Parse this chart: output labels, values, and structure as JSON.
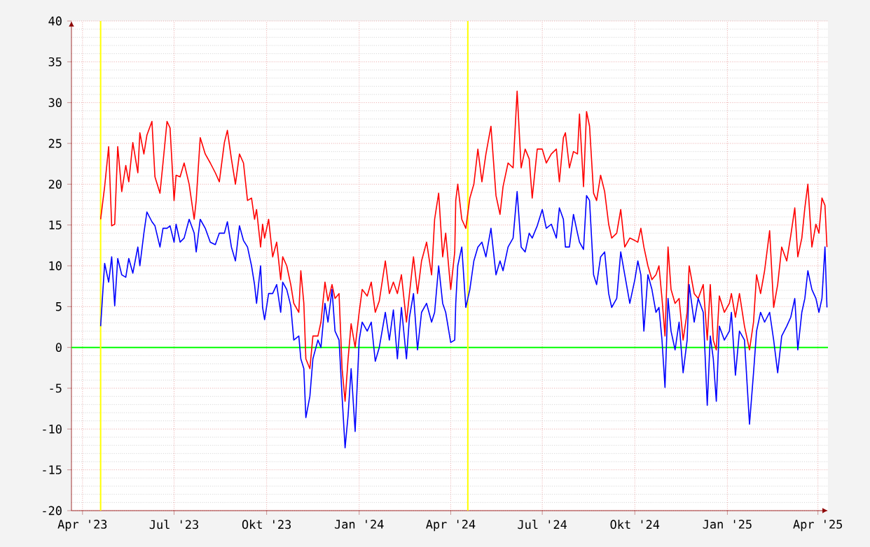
{
  "chart_data": {
    "type": "line",
    "x": [
      "2023-04-19",
      "2023-04-23",
      "2023-04-27",
      "2023-04-30",
      "2023-05-03",
      "2023-05-06",
      "2023-05-10",
      "2023-05-14",
      "2023-05-17",
      "2023-05-21",
      "2023-05-26",
      "2023-05-28",
      "2023-06-01",
      "2023-06-04",
      "2023-06-09",
      "2023-06-12",
      "2023-06-17",
      "2023-06-20",
      "2023-06-24",
      "2023-06-27",
      "2023-07-01",
      "2023-07-03",
      "2023-07-07",
      "2023-07-11",
      "2023-07-16",
      "2023-07-21",
      "2023-07-23",
      "2023-07-27",
      "2023-08-01",
      "2023-08-06",
      "2023-08-11",
      "2023-08-15",
      "2023-08-20",
      "2023-08-23",
      "2023-08-27",
      "2023-08-31",
      "2023-09-04",
      "2023-09-08",
      "2023-09-12",
      "2023-09-16",
      "2023-09-19",
      "2023-09-21",
      "2023-09-25",
      "2023-09-27",
      "2023-09-29",
      "2023-10-03",
      "2023-10-07",
      "2023-10-11",
      "2023-10-15",
      "2023-10-17",
      "2023-10-21",
      "2023-10-25",
      "2023-10-28",
      "2023-11-02",
      "2023-11-04",
      "2023-11-07",
      "2023-11-09",
      "2023-11-13",
      "2023-11-16",
      "2023-11-21",
      "2023-11-24",
      "2023-11-28",
      "2023-12-01",
      "2023-12-05",
      "2023-12-08",
      "2023-12-12",
      "2023-12-15",
      "2023-12-18",
      "2023-12-21",
      "2023-12-24",
      "2023-12-28",
      "2024-01-01",
      "2024-01-04",
      "2024-01-09",
      "2024-01-13",
      "2024-01-17",
      "2024-01-21",
      "2024-01-27",
      "2024-01-31",
      "2024-02-04",
      "2024-02-08",
      "2024-02-12",
      "2024-02-17",
      "2024-02-20",
      "2024-02-24",
      "2024-02-28",
      "2024-03-03",
      "2024-03-08",
      "2024-03-13",
      "2024-03-16",
      "2024-03-20",
      "2024-03-24",
      "2024-03-27",
      "2024-04-01",
      "2024-04-05",
      "2024-04-06",
      "2024-04-08",
      "2024-04-12",
      "2024-04-16",
      "2024-04-20",
      "2024-04-24",
      "2024-04-28",
      "2024-05-02",
      "2024-05-06",
      "2024-05-11",
      "2024-05-16",
      "2024-05-20",
      "2024-05-23",
      "2024-05-28",
      "2024-06-02",
      "2024-06-06",
      "2024-06-10",
      "2024-06-14",
      "2024-06-18",
      "2024-06-21",
      "2024-06-26",
      "2024-07-01",
      "2024-07-05",
      "2024-07-10",
      "2024-07-15",
      "2024-07-18",
      "2024-07-22",
      "2024-07-24",
      "2024-07-28",
      "2024-08-01",
      "2024-08-05",
      "2024-08-07",
      "2024-08-11",
      "2024-08-14",
      "2024-08-17",
      "2024-08-21",
      "2024-08-24",
      "2024-08-28",
      "2024-09-01",
      "2024-09-05",
      "2024-09-08",
      "2024-09-13",
      "2024-09-17",
      "2024-09-21",
      "2024-09-26",
      "2024-10-01",
      "2024-10-04",
      "2024-10-07",
      "2024-10-10",
      "2024-10-14",
      "2024-10-18",
      "2024-10-22",
      "2024-10-25",
      "2024-10-28",
      "2024-10-31",
      "2024-11-03",
      "2024-11-06",
      "2024-11-10",
      "2024-11-14",
      "2024-11-18",
      "2024-11-22",
      "2024-11-24",
      "2024-11-29",
      "2024-12-03",
      "2024-12-08",
      "2024-12-12",
      "2024-12-15",
      "2024-12-18",
      "2024-12-21",
      "2024-12-24",
      "2024-12-29",
      "2025-01-03",
      "2025-01-05",
      "2025-01-09",
      "2025-01-13",
      "2025-01-18",
      "2025-01-23",
      "2025-01-27",
      "2025-01-30",
      "2025-02-03",
      "2025-02-07",
      "2025-02-12",
      "2025-02-16",
      "2025-02-20",
      "2025-02-24",
      "2025-03-01",
      "2025-03-05",
      "2025-03-09",
      "2025-03-12",
      "2025-03-16",
      "2025-03-19",
      "2025-03-22",
      "2025-03-26",
      "2025-03-30",
      "2025-04-02",
      "2025-04-05",
      "2025-04-08",
      "2025-04-10"
    ],
    "series": [
      {
        "color": "#ff0000",
        "values": [
          15.7,
          19.7,
          24.6,
          14.9,
          15.1,
          24.6,
          19.1,
          22.3,
          20.3,
          25.1,
          21.4,
          26.3,
          23.7,
          26,
          27.7,
          20.9,
          18.9,
          22.6,
          27.7,
          26.9,
          18,
          21.1,
          20.9,
          22.6,
          20,
          15.7,
          18,
          25.7,
          23.7,
          22.6,
          21.4,
          20.3,
          25.1,
          26.6,
          23.1,
          20,
          23.7,
          22.6,
          18,
          18.3,
          15.7,
          16.9,
          12.3,
          15.1,
          13.4,
          15.7,
          11.1,
          12.9,
          8.3,
          11.1,
          10,
          7.7,
          5.4,
          4.3,
          9.4,
          5.4,
          -1.4,
          -2.6,
          1.4,
          1.4,
          3.1,
          8,
          5.7,
          7.7,
          6,
          6.6,
          -2.6,
          -6.6,
          -1.4,
          2.9,
          0,
          4.3,
          7.1,
          6.3,
          8,
          4.3,
          5.7,
          10.6,
          6.6,
          8,
          6.6,
          8.9,
          3.1,
          6.6,
          11.1,
          6.6,
          10.6,
          12.9,
          8.9,
          15.7,
          18.9,
          11.1,
          14,
          7.1,
          11.7,
          18,
          20,
          15.7,
          14.6,
          18.3,
          20,
          24.3,
          20.3,
          23.7,
          27.1,
          18.6,
          16.3,
          19.7,
          22.6,
          22,
          31.4,
          22,
          24.3,
          23.1,
          18.3,
          24.3,
          24.3,
          22.6,
          23.7,
          24.3,
          20.3,
          25.7,
          26.3,
          22,
          24,
          23.7,
          28.6,
          19.7,
          28.9,
          27.1,
          18.9,
          18,
          21.1,
          19.1,
          15.1,
          13.4,
          14,
          16.9,
          12.3,
          13.4,
          13.1,
          12.9,
          14.6,
          12.3,
          10,
          8.3,
          8.9,
          10,
          6,
          1.4,
          12.3,
          7.1,
          5.4,
          6,
          0.9,
          4.3,
          10,
          6.6,
          6,
          7.7,
          0.9,
          7.7,
          0.9,
          -0.3,
          6.3,
          4.3,
          5.4,
          6.6,
          3.7,
          6.6,
          2.6,
          -0.3,
          3.1,
          8.9,
          6.6,
          9.4,
          14.3,
          4.9,
          7.7,
          12.3,
          10.6,
          13.7,
          17.1,
          11.1,
          13.4,
          17.1,
          20,
          12.3,
          15.1,
          14,
          18.3,
          17.4,
          12.3
        ]
      },
      {
        "color": "#0000ff",
        "values": [
          2.6,
          10.3,
          8,
          11.1,
          5.1,
          10.9,
          8.9,
          8.6,
          10.9,
          9.1,
          12.3,
          10,
          14,
          16.6,
          15.4,
          14.9,
          12.3,
          14.6,
          14.6,
          14.9,
          12.9,
          15.1,
          12.9,
          13.4,
          15.7,
          14,
          11.7,
          15.7,
          14.6,
          12.9,
          12.6,
          14,
          14,
          15.4,
          12.3,
          10.6,
          14.9,
          13.1,
          12.3,
          10,
          7.7,
          5.4,
          10,
          4.9,
          3.4,
          6.6,
          6.6,
          7.7,
          4.3,
          8,
          7.1,
          5.1,
          0.9,
          1.4,
          -1.4,
          -2.6,
          -8.6,
          -6,
          -1.4,
          0.9,
          0,
          5.4,
          3.1,
          7.1,
          2,
          0.9,
          -6,
          -12.3,
          -8.3,
          -2.6,
          -10.3,
          0.9,
          3.1,
          2,
          3.1,
          -1.7,
          0,
          4.3,
          0.9,
          4.6,
          -1.4,
          4.9,
          -1.4,
          3.7,
          6.6,
          -0.3,
          4.3,
          5.4,
          3.1,
          4.3,
          10,
          5.4,
          4.3,
          0.6,
          0.9,
          5.4,
          10,
          12.3,
          4.9,
          7.1,
          10.6,
          12.3,
          12.9,
          11.1,
          14.6,
          8.9,
          10.6,
          9.4,
          12.3,
          13.4,
          19.1,
          12.3,
          11.7,
          14,
          13.4,
          14.9,
          16.9,
          14.6,
          15.1,
          13.4,
          17.1,
          15.7,
          12.3,
          12.3,
          16.3,
          14,
          12.9,
          12,
          18.6,
          18,
          8.9,
          7.7,
          11.1,
          11.7,
          6.6,
          4.9,
          6,
          11.7,
          8.9,
          5.4,
          8.3,
          10.6,
          8.9,
          2,
          8.9,
          7.1,
          4.3,
          4.9,
          0.9,
          -4.9,
          6,
          2,
          -0.3,
          3.1,
          -3.1,
          0.9,
          7.7,
          3.1,
          6,
          4.3,
          -7.1,
          1.4,
          -1.4,
          -6.6,
          2.6,
          0.9,
          2,
          4.3,
          -3.4,
          2,
          0.9,
          -9.4,
          -3.1,
          2,
          4.3,
          3.1,
          4.3,
          0.9,
          -3.1,
          1.4,
          2.6,
          3.7,
          6,
          -0.3,
          4.3,
          6,
          9.4,
          7.1,
          6,
          4.3,
          6,
          12.3,
          4.9
        ]
      }
    ],
    "xlim": [
      "2023-03-21",
      "2025-04-11"
    ],
    "xticks": [
      {
        "value": "2023-04-01",
        "label": "Apr '23"
      },
      {
        "value": "2023-07-01",
        "label": "Jul '23"
      },
      {
        "value": "2023-10-01",
        "label": "Okt '23"
      },
      {
        "value": "2024-01-01",
        "label": "Jan '24"
      },
      {
        "value": "2024-04-01",
        "label": "Apr '24"
      },
      {
        "value": "2024-07-01",
        "label": "Jul '24"
      },
      {
        "value": "2024-10-01",
        "label": "Okt '24"
      },
      {
        "value": "2025-01-01",
        "label": "Jan '25"
      },
      {
        "value": "2025-04-01",
        "label": "Apr '25"
      }
    ],
    "ylim": [
      -20,
      40
    ],
    "yticks": [
      -20,
      -15,
      -10,
      -5,
      0,
      5,
      10,
      15,
      20,
      25,
      30,
      35,
      40
    ],
    "ref_lines": [
      {
        "axis": "y",
        "value": 0,
        "color": "#00ff00"
      },
      {
        "axis": "x",
        "value": "2023-04-19",
        "color": "#ffff00"
      },
      {
        "axis": "x",
        "value": "2024-04-18",
        "color": "#ffff00"
      }
    ],
    "grid": true,
    "marker": "none",
    "line_style": "solid"
  }
}
